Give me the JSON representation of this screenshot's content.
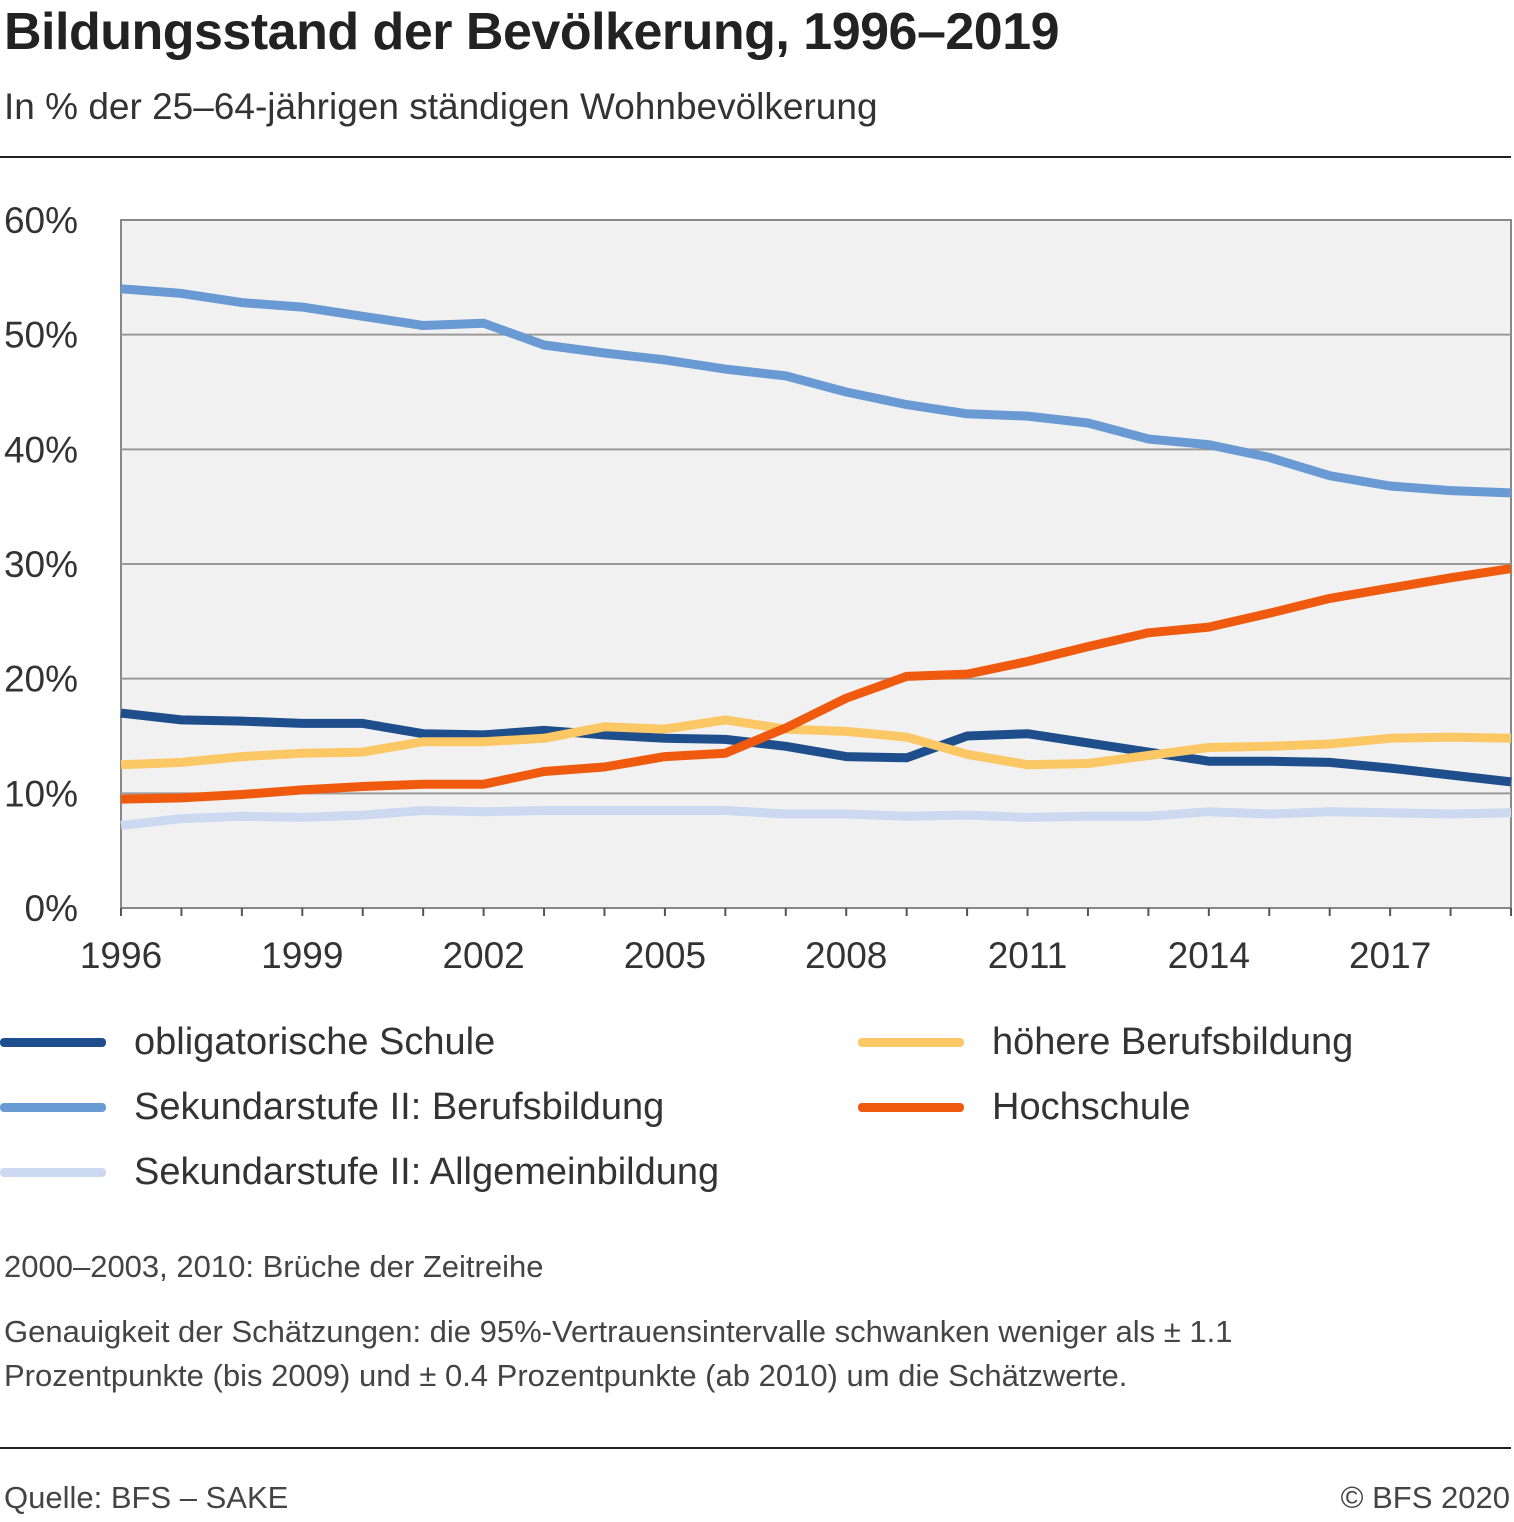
{
  "header": {
    "title": "Bildungsstand der Bevölkerung, 1996–2019",
    "subtitle": "In % der 25–64-jährigen ständigen Wohnbevölkerung"
  },
  "chart_data": {
    "type": "line",
    "title": "Bildungsstand der Bevölkerung, 1996–2019",
    "subtitle": "In % der 25–64-jährigen ständigen Wohnbevölkerung",
    "xlabel": "",
    "ylabel": "",
    "x": [
      1996,
      1997,
      1998,
      1999,
      2000,
      2001,
      2002,
      2003,
      2004,
      2005,
      2006,
      2007,
      2008,
      2009,
      2010,
      2011,
      2012,
      2013,
      2014,
      2015,
      2016,
      2017,
      2018,
      2019
    ],
    "x_tick_labels": [
      "1996",
      "1999",
      "2002",
      "2005",
      "2008",
      "2011",
      "2014",
      "2017"
    ],
    "y_tick_labels": [
      "0%",
      "10%",
      "20%",
      "30%",
      "40%",
      "50%",
      "60%"
    ],
    "ylim": [
      0,
      60
    ],
    "grid": true,
    "legend_position": "bottom",
    "series": [
      {
        "name": "obligatorische Schule",
        "color": "#1f4e8c",
        "values": [
          17.0,
          16.4,
          16.3,
          16.1,
          16.1,
          15.2,
          15.1,
          15.5,
          15.1,
          14.8,
          14.7,
          14.1,
          13.2,
          13.1,
          15.0,
          15.2,
          14.4,
          13.6,
          12.8,
          12.8,
          12.7,
          12.2,
          11.6,
          11.0
        ]
      },
      {
        "name": "Sekundarstufe II: Berufsbildung",
        "color": "#6a9ad4",
        "values": [
          54.0,
          53.6,
          52.8,
          52.4,
          51.6,
          50.8,
          51.0,
          49.1,
          48.4,
          47.8,
          47.0,
          46.4,
          45.0,
          43.9,
          43.1,
          42.9,
          42.3,
          40.9,
          40.4,
          39.3,
          37.7,
          36.8,
          36.4,
          36.2
        ]
      },
      {
        "name": "Sekundarstufe II: Allgemeinbildung",
        "color": "#cdd9f1",
        "values": [
          7.2,
          7.8,
          8.0,
          7.9,
          8.1,
          8.5,
          8.4,
          8.5,
          8.5,
          8.5,
          8.5,
          8.2,
          8.2,
          8.0,
          8.1,
          7.9,
          8.0,
          8.0,
          8.4,
          8.2,
          8.4,
          8.3,
          8.2,
          8.3
        ]
      },
      {
        "name": "höhere Berufsbildung",
        "color": "#fcc765",
        "values": [
          12.5,
          12.7,
          13.2,
          13.5,
          13.6,
          14.5,
          14.5,
          14.8,
          15.8,
          15.6,
          16.4,
          15.6,
          15.4,
          14.9,
          13.4,
          12.5,
          12.6,
          13.3,
          14.0,
          14.1,
          14.3,
          14.8,
          14.9,
          14.8
        ]
      },
      {
        "name": "Hochschule",
        "color": "#f05a0e",
        "values": [
          9.5,
          9.6,
          9.9,
          10.3,
          10.6,
          10.8,
          10.8,
          11.9,
          12.3,
          13.2,
          13.5,
          15.7,
          18.3,
          20.2,
          20.4,
          21.5,
          22.8,
          24.0,
          24.5,
          25.7,
          27.0,
          27.9,
          28.8,
          29.6
        ]
      }
    ]
  },
  "legend": {
    "items": [
      {
        "label": "obligatorische Schule",
        "color": "#1f4e8c"
      },
      {
        "label": "Sekundarstufe II: Berufsbildung",
        "color": "#6a9ad4"
      },
      {
        "label": "Sekundarstufe II: Allgemeinbildung",
        "color": "#cdd9f1"
      },
      {
        "label": "höhere Berufsbildung",
        "color": "#fcc765"
      },
      {
        "label": "Hochschule",
        "color": "#f05a0e"
      }
    ]
  },
  "notes": {
    "break_note": "2000–2003, 2010: Brüche der Zeitreihe",
    "accuracy_line1": "Genauigkeit der Schätzungen: die 95%-Vertrauensintervalle schwanken weniger als ± 1.1",
    "accuracy_line2": "Prozentpunkte (bis 2009) und ± 0.4 Prozentpunkte (ab 2010) um die Schätzwerte."
  },
  "footer": {
    "source": "Quelle: BFS – SAKE",
    "copyright": "© BFS 2020"
  }
}
